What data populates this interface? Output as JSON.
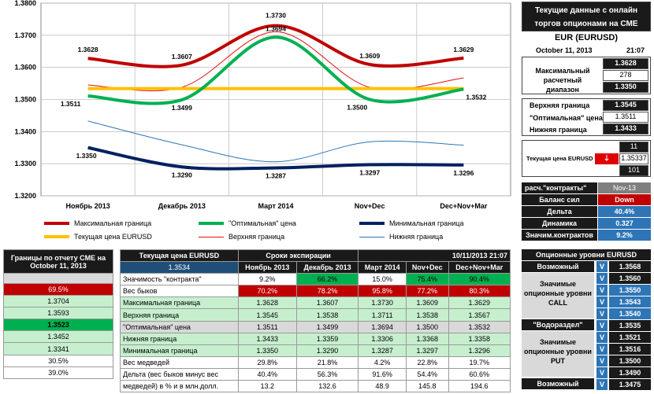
{
  "chart_data": {
    "type": "line",
    "categories": [
      "Ноябрь  2013",
      "Декабрь 2013",
      "Март 2014",
      "Nov+Dec",
      "Dec+Nov+Mar"
    ],
    "ylim": [
      1.32,
      1.38
    ],
    "yticks": [
      "1.3200",
      "1.3300",
      "1.3400",
      "1.3500",
      "1.3600",
      "1.3700",
      "1.3800"
    ],
    "series": [
      {
        "name": "Максимальная граница",
        "values": [
          1.3628,
          1.3607,
          1.373,
          1.3609,
          1.3629
        ],
        "labels": [
          "1.3628",
          "1.3607",
          "1.3730",
          "1.3609",
          "1.3629"
        ],
        "color": "#c00000",
        "width": 4
      },
      {
        "name": "\"Оптимальная\" цена",
        "values": [
          1.3511,
          1.3499,
          1.3694,
          1.35,
          1.3532
        ],
        "labels": [
          "1.3511",
          "1.3499",
          "1.3694",
          "1.3500",
          "1.3532"
        ],
        "color": "#00b050",
        "width": 4
      },
      {
        "name": "Минимальная граница",
        "values": [
          1.335,
          1.329,
          1.3287,
          1.3297,
          1.3296
        ],
        "labels": [
          "1.3350",
          "1.3290",
          "1.3287",
          "1.3297",
          "1.3296"
        ],
        "color": "#002060",
        "width": 4
      },
      {
        "name": "Текущая цена EURUSD",
        "values": [
          1.3534,
          1.3534,
          1.3534,
          1.3534,
          1.3534
        ],
        "color": "#ffc000",
        "width": 4
      },
      {
        "name": "Верхняя граница",
        "values": [
          1.3545,
          1.3538,
          1.3711,
          1.3538,
          1.3567
        ],
        "color": "#e01010",
        "width": 1
      },
      {
        "name": "Нижняя граница",
        "values": [
          1.3433,
          1.3359,
          1.3306,
          1.3368,
          1.3358
        ],
        "color": "#2e75b6",
        "width": 1
      }
    ]
  },
  "left_table": {
    "header": "Границы по отчету CME на October 11, 2013",
    "rows": [
      "69.5%",
      "1.3704",
      "1.3593",
      "1.3523",
      "1.3452",
      "1.3341",
      "30.5%",
      "39.0%"
    ]
  },
  "main_table": {
    "current_label": "Текущая цена EURUSD",
    "current_value": "1.3534",
    "expiry_label": "Сроки экспирации",
    "datetime": "10/11/2013 21:07",
    "columns": [
      "Ноябрь 2013",
      "Декабрь 2013",
      "Март 2014",
      "Nov+Dec",
      "Dec+Nov+Mar"
    ],
    "rows": [
      {
        "label": "Значимость \"контракта\"",
        "values": [
          "9.2%",
          "66.2%",
          "15.0%",
          "75.4%",
          "90.4%"
        ]
      },
      {
        "label": "Вес быков",
        "values": [
          "70.2%",
          "78.2%",
          "95.8%",
          "77.2%",
          "80.3%"
        ]
      },
      {
        "label": "Максимальная граница",
        "values": [
          "1.3628",
          "1.3607",
          "1.3730",
          "1.3609",
          "1.3629"
        ]
      },
      {
        "label": "Верхняя граница",
        "values": [
          "1.3545",
          "1.3538",
          "1.3711",
          "1.3538",
          "1.3567"
        ]
      },
      {
        "label": "\"Оптимальная\" цена",
        "values": [
          "1.3511",
          "1.3499",
          "1.3694",
          "1.3500",
          "1.3532"
        ]
      },
      {
        "label": "Нижняя граница",
        "values": [
          "1.3433",
          "1.3359",
          "1.3306",
          "1.3368",
          "1.3358"
        ]
      },
      {
        "label": "Минимальная граница",
        "values": [
          "1.3350",
          "1.3290",
          "1.3287",
          "1.3297",
          "1.3296"
        ]
      },
      {
        "label": "Вес медведей",
        "values": [
          "29.8%",
          "21.8%",
          "4.2%",
          "22.8%",
          "19.7%"
        ]
      },
      {
        "label": "Дельта (вес быков минус вес",
        "values": [
          "40.4%",
          "56.3%",
          "91.6%",
          "54.4%",
          "60.6%"
        ]
      },
      {
        "label": "медведей) в % и в млн.долл.",
        "values": [
          "13.2",
          "132.6",
          "48.9",
          "145.8",
          "194.6"
        ]
      }
    ]
  },
  "right_panel": {
    "title1": "Текущие данные с онлайн",
    "title2": "торгов опционами на CME",
    "pair": "EUR (EURUSD)",
    "date": "October 11, 2013",
    "time": "21:07",
    "range_label1": "Максимальный",
    "range_label2": "расчетный диапазон",
    "range_top": "1.3628",
    "range_mid": "278",
    "range_bot": "1.3350",
    "upper_label": "Верхняя граница",
    "upper_value": "1.3545",
    "optimal_label": "\"Оптимальная\" цена",
    "optimal_value": "1.3511",
    "lower_label": "Нижняя граница",
    "lower_value": "1.3433",
    "cur_label": "Текущая цена EURUSD",
    "cur_top": "11",
    "cur_value": "1.35337",
    "cur_bot": "101",
    "arrow": "down-arrow-icon",
    "calc_label": "расч.\"контракты\"",
    "calc_value": "Nov-13",
    "balance_label": "Баланс сил",
    "balance_value": "Down",
    "delta_label": "Дельта",
    "delta_value": "40.4%",
    "dyn_label": "Динамика",
    "dyn_value": "0.327",
    "sig_label": "Значим.контрактов",
    "sig_value": "9.2%"
  },
  "levels": {
    "title": "Опционные уровни EURUSD",
    "possible_top": "Возможный",
    "call_label1": "Значимые",
    "call_label2": "опционные уровни",
    "call_label3": "CALL",
    "watershed": "\"Водораздел\"",
    "put_label1": "Значимые",
    "put_label2": "опционные уровни",
    "put_label3": "PUT",
    "possible_bottom": "Возможный",
    "v": "V",
    "values": [
      "1.3568",
      "1.3560",
      "1.3550",
      "1.3543",
      "1.3540",
      "1.3535",
      "1.3521",
      "1.3516",
      "1.3500",
      "1.3490",
      "1.3475"
    ]
  }
}
